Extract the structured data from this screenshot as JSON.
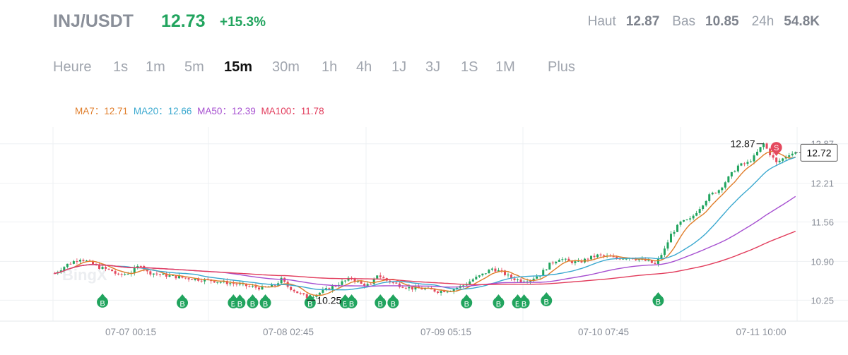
{
  "header": {
    "pair": "INJ/USDT",
    "price": "12.73",
    "change": "+15.3%",
    "high_label": "Haut",
    "high_value": "12.87",
    "low_label": "Bas",
    "low_value": "10.85",
    "volume_label": "24h",
    "volume_value": "54.8K"
  },
  "timeframes": [
    "Heure",
    "1s",
    "1m",
    "5m",
    "15m",
    "30m",
    "1h",
    "4h",
    "1J",
    "3J",
    "1S",
    "1M",
    "Plus"
  ],
  "active_timeframe": "15m",
  "ma_legend": {
    "ma7_label": "MA7：",
    "ma7_value": "12.71",
    "ma20_label": "MA20：",
    "ma20_value": "12.66",
    "ma50_label": "MA50：",
    "ma50_value": "12.39",
    "ma100_label": "MA100：",
    "ma100_value": "11.78"
  },
  "watermark": "BingX",
  "colors": {
    "up": "#21a45e",
    "down": "#e4495e",
    "ma7": "#e07d2a",
    "ma20": "#3aa8cf",
    "ma50": "#a64fd0",
    "ma100": "#e23c5c",
    "text_muted": "#8a8f99"
  },
  "chart_data": {
    "type": "candlestick",
    "x_ticks": [
      "07-07 00:15",
      "07-08 02:45",
      "07-09 05:15",
      "07-10 07:45",
      "07-11 10:00"
    ],
    "y_ticks": [
      12.87,
      12.21,
      11.56,
      10.9,
      10.25
    ],
    "ylim": [
      9.9,
      13.15
    ],
    "high_annotation": "12.87",
    "low_annotation": "10.25",
    "current_price_tag": "12.72",
    "sell_marker_label": "S",
    "buy_marker_label": "B",
    "close_path": [
      [
        0,
        10.7
      ],
      [
        4,
        10.85
      ],
      [
        8,
        10.95
      ],
      [
        11,
        10.88
      ],
      [
        14,
        10.8
      ],
      [
        18,
        10.74
      ],
      [
        20,
        10.66
      ],
      [
        24,
        10.72
      ],
      [
        27,
        10.85
      ],
      [
        29,
        10.72
      ],
      [
        33,
        10.68
      ],
      [
        37,
        10.65
      ],
      [
        41,
        10.62
      ],
      [
        45,
        10.6
      ],
      [
        49,
        10.58
      ],
      [
        53,
        10.55
      ],
      [
        57,
        10.52
      ],
      [
        61,
        10.48
      ],
      [
        65,
        10.45
      ],
      [
        69,
        10.5
      ],
      [
        71,
        10.6
      ],
      [
        73,
        10.48
      ],
      [
        76,
        10.38
      ],
      [
        79,
        10.3
      ],
      [
        82,
        10.35
      ],
      [
        86,
        10.45
      ],
      [
        90,
        10.55
      ],
      [
        93,
        10.62
      ],
      [
        96,
        10.52
      ],
      [
        99,
        10.5
      ],
      [
        101,
        10.68
      ],
      [
        104,
        10.58
      ],
      [
        108,
        10.5
      ],
      [
        112,
        10.45
      ],
      [
        116,
        10.44
      ],
      [
        120,
        10.4
      ],
      [
        124,
        10.42
      ],
      [
        128,
        10.5
      ],
      [
        131,
        10.6
      ],
      [
        134,
        10.68
      ],
      [
        137,
        10.78
      ],
      [
        140,
        10.72
      ],
      [
        143,
        10.62
      ],
      [
        146,
        10.58
      ],
      [
        149,
        10.6
      ],
      [
        152,
        10.68
      ],
      [
        155,
        10.85
      ],
      [
        158,
        10.95
      ],
      [
        161,
        10.9
      ],
      [
        164,
        10.88
      ],
      [
        167,
        10.95
      ],
      [
        170,
        11.0
      ],
      [
        173,
        10.98
      ],
      [
        176,
        10.95
      ],
      [
        180,
        10.97
      ],
      [
        184,
        10.92
      ],
      [
        186,
        10.9
      ],
      [
        188,
        10.85
      ],
      [
        191,
        11.1
      ],
      [
        193,
        11.35
      ],
      [
        196,
        11.55
      ],
      [
        199,
        11.6
      ],
      [
        202,
        11.8
      ],
      [
        205,
        12.0
      ],
      [
        208,
        12.1
      ],
      [
        211,
        12.3
      ],
      [
        214,
        12.5
      ],
      [
        217,
        12.55
      ],
      [
        219,
        12.65
      ],
      [
        221,
        12.8
      ],
      [
        222,
        12.87
      ],
      [
        224,
        12.7
      ],
      [
        226,
        12.55
      ],
      [
        228,
        12.62
      ],
      [
        230,
        12.7
      ],
      [
        232,
        12.72
      ]
    ],
    "ma_values_last": {
      "MA7": 12.71,
      "MA20": 12.66,
      "MA50": 12.39,
      "MA100": 11.78
    }
  }
}
